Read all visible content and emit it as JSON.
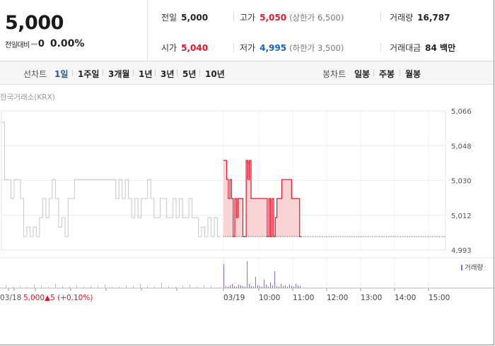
{
  "summary": {
    "current_price": "5,000",
    "change_label": "전일대비",
    "change_amount": "0",
    "change_percent": "0.00%",
    "prev_close": {
      "label": "전일",
      "value": "5,000"
    },
    "open": {
      "label": "시가",
      "value": "5,040"
    },
    "high": {
      "label": "고가",
      "value": "5,050",
      "sub": "(상한가 6,500)"
    },
    "low": {
      "label": "저가",
      "value": "4,995",
      "sub": "(하한가 3,500)"
    },
    "volume": {
      "label": "거래량",
      "value": "16,787"
    },
    "trade_value": {
      "label": "거래대금",
      "value": "84 백만"
    }
  },
  "toolbar": {
    "line_chart_label": "선차트",
    "periods": [
      "1일",
      "1주일",
      "3개월",
      "1년",
      "3년",
      "5년",
      "10년"
    ],
    "active_period": "1일",
    "candle_chart_label": "봉차트",
    "candle_periods": [
      "일봉",
      "주봉",
      "월봉"
    ]
  },
  "colors": {
    "up": "#e0182d",
    "down": "#1461c8",
    "active": "#2a56a8",
    "history_line": "#c8c8c8",
    "volume_bar": "#8e6fc0"
  },
  "chart_data": {
    "type": "line",
    "source_label": "한국거래소(KRX)",
    "y_ticks": [
      "5,066",
      "5,048",
      "5,030",
      "5,012",
      "4,993"
    ],
    "ylim": [
      4993,
      5066
    ],
    "x_ticks": [
      "03/19",
      "10:00",
      "11:00",
      "12:00",
      "13:00",
      "14:00",
      "15:00"
    ],
    "prev_day_series": {
      "name": "03/18",
      "values": [
        5060,
        5030,
        5030,
        5020,
        5030,
        5030,
        5020,
        5000,
        5005,
        5000,
        5005,
        5000,
        5010,
        5020,
        5010,
        5020,
        5030,
        5020,
        5005,
        5010,
        5000,
        5020,
        5020,
        5030,
        5030,
        5030,
        5030,
        5030,
        5030,
        5030,
        5030,
        5030,
        5030,
        5030,
        5030,
        5030,
        5020,
        5030,
        5020,
        5030,
        5020,
        5010,
        5020,
        5010,
        5020,
        5020,
        5030,
        5020,
        5010,
        5010,
        5020,
        5020,
        5010,
        5010,
        5020,
        5010,
        5020,
        5010,
        5010,
        5020,
        5010,
        5010,
        5000,
        5005,
        5000,
        5010,
        5000,
        5010,
        5000
      ]
    },
    "today_series": {
      "name": "03/19",
      "values": [
        5040,
        5040,
        5030,
        5020,
        5030,
        5020,
        5000,
        5020,
        5010,
        5020,
        5020,
        5020,
        5000,
        5000,
        5040,
        5030,
        5040,
        5020,
        5020,
        5020,
        5020,
        5020,
        5020,
        5020,
        5020,
        5020,
        5020,
        5000,
        5020,
        5000,
        5020,
        5000,
        5010,
        5020,
        5020,
        5020,
        5030,
        5030,
        5030,
        5030,
        5030,
        5030,
        5020,
        5020,
        5020,
        5020,
        5020,
        5000
      ],
      "end_time": "11:00"
    },
    "baseline_value": 5000,
    "volume_label": "거래량",
    "prev_day_info": {
      "date": "03/18",
      "price": "5,000",
      "change": "▲5 (+0.10%)"
    }
  }
}
